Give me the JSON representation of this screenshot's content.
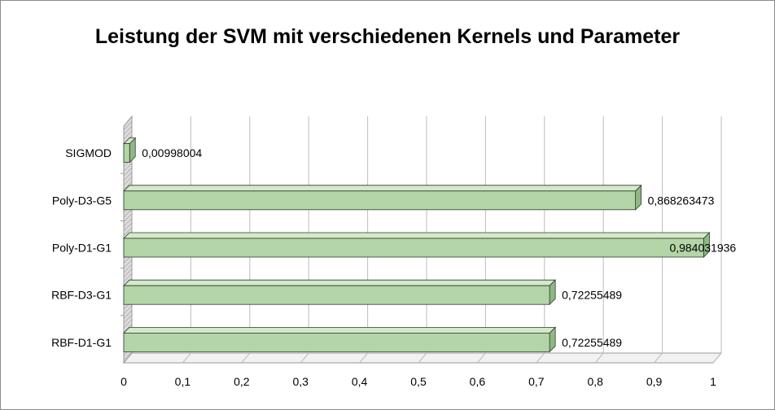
{
  "chart_data": {
    "type": "bar",
    "orientation": "horizontal",
    "title": "Leistung der SVM mit verschiedenen Kernels und Parameter",
    "categories": [
      "SIGMOD",
      "Poly-D3-G5",
      "Poly-D1-G1",
      "RBF-D3-G1",
      "RBF-D1-G1"
    ],
    "values": [
      0.00998004,
      0.868263473,
      0.984031936,
      0.72255489,
      0.72255489
    ],
    "data_labels": [
      "0,00998004",
      "0,868263473",
      "0,984031936",
      "0,72255489",
      "0,72255489"
    ],
    "xlim": [
      0,
      1
    ],
    "x_ticks": [
      "0",
      "0,1",
      "0,2",
      "0,3",
      "0,4",
      "0,5",
      "0,6",
      "0,7",
      "0,8",
      "0,9",
      "1"
    ],
    "grid": true,
    "bar_color": "#b3d5a7",
    "bar_top_color": "#d4e9cb",
    "bar_side_color": "#8fb884",
    "bar_edge_color": "#2d3a2a"
  }
}
